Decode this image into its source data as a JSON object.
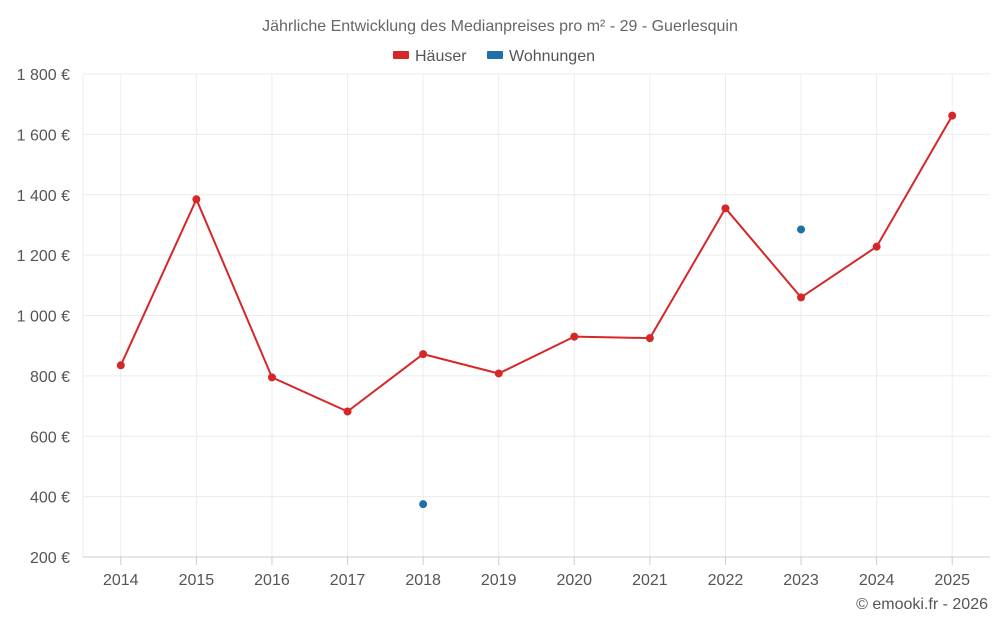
{
  "chart_data": {
    "type": "line",
    "title": "Jährliche Entwicklung des Medianpreises pro m² - 29 - Guerlesquin",
    "xlabel": "",
    "ylabel": "",
    "categories": [
      "2014",
      "2015",
      "2016",
      "2017",
      "2018",
      "2019",
      "2020",
      "2021",
      "2022",
      "2023",
      "2024",
      "2025"
    ],
    "ylim": [
      200,
      1800
    ],
    "yticks": [
      200,
      400,
      600,
      800,
      1000,
      1200,
      1400,
      1600,
      1800
    ],
    "ytick_labels": [
      "200 €",
      "400 €",
      "600 €",
      "800 €",
      "1 000 €",
      "1 200 €",
      "1 400 €",
      "1 600 €",
      "1 800 €"
    ],
    "grid": true,
    "legend_position": "top-center",
    "series": [
      {
        "name": "Häuser",
        "color": "#d62728",
        "values": [
          835,
          1385,
          795,
          682,
          872,
          808,
          930,
          925,
          1355,
          1060,
          1228,
          1662
        ]
      },
      {
        "name": "Wohnungen",
        "color": "#1f6fa8",
        "values": [
          null,
          null,
          null,
          null,
          375,
          null,
          null,
          null,
          null,
          1285,
          null,
          null
        ]
      }
    ]
  },
  "credit": "© emooki.fr - 2026"
}
